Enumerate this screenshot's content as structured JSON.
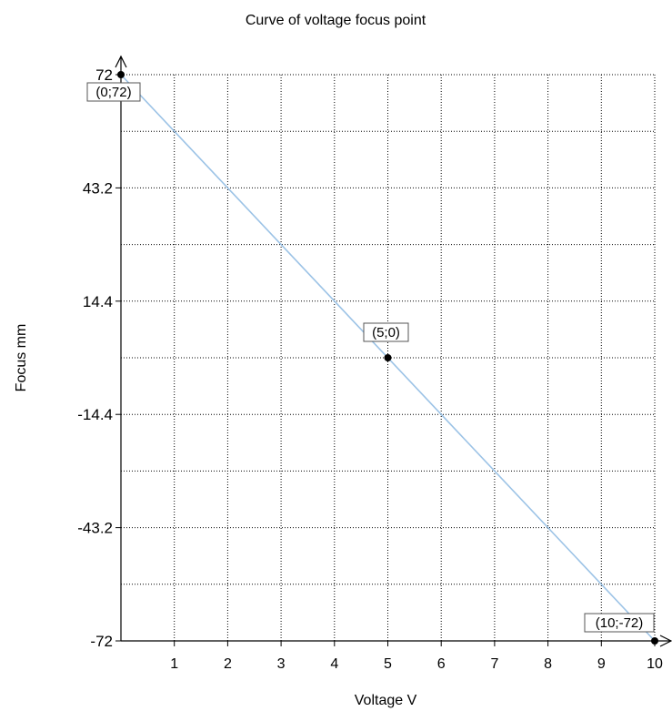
{
  "chart_data": {
    "type": "line",
    "title": "Curve of voltage focus point",
    "xlabel": "Voltage V",
    "ylabel": "Focus mm",
    "xlim": [
      0,
      10
    ],
    "ylim": [
      -72,
      72
    ],
    "x_ticks": [
      1,
      2,
      3,
      4,
      5,
      6,
      7,
      8,
      9,
      10
    ],
    "x_tick_labels": [
      "1",
      "2",
      "3",
      "4",
      "5",
      "6",
      "7",
      "8",
      "9",
      "10"
    ],
    "y_ticks": [
      72,
      43.2,
      14.4,
      -14.4,
      -43.2,
      -72
    ],
    "y_tick_labels": [
      "72",
      "43.2",
      "14.4",
      "-14.4",
      "-43.2",
      "-72"
    ],
    "x_grid_step": 1,
    "y_grid_step": 14.4,
    "grid": true,
    "grid_style": "dotted",
    "legend": "none",
    "series": [
      {
        "color": "#9cc3e6",
        "x": [
          0,
          10
        ],
        "y": [
          72,
          -72
        ]
      }
    ],
    "marked_points": [
      {
        "x": 0,
        "y": 72,
        "label": "(0;72)"
      },
      {
        "x": 5,
        "y": 0,
        "label": "(5;0)"
      },
      {
        "x": 10,
        "y": -72,
        "label": "(10;-72)"
      }
    ]
  }
}
